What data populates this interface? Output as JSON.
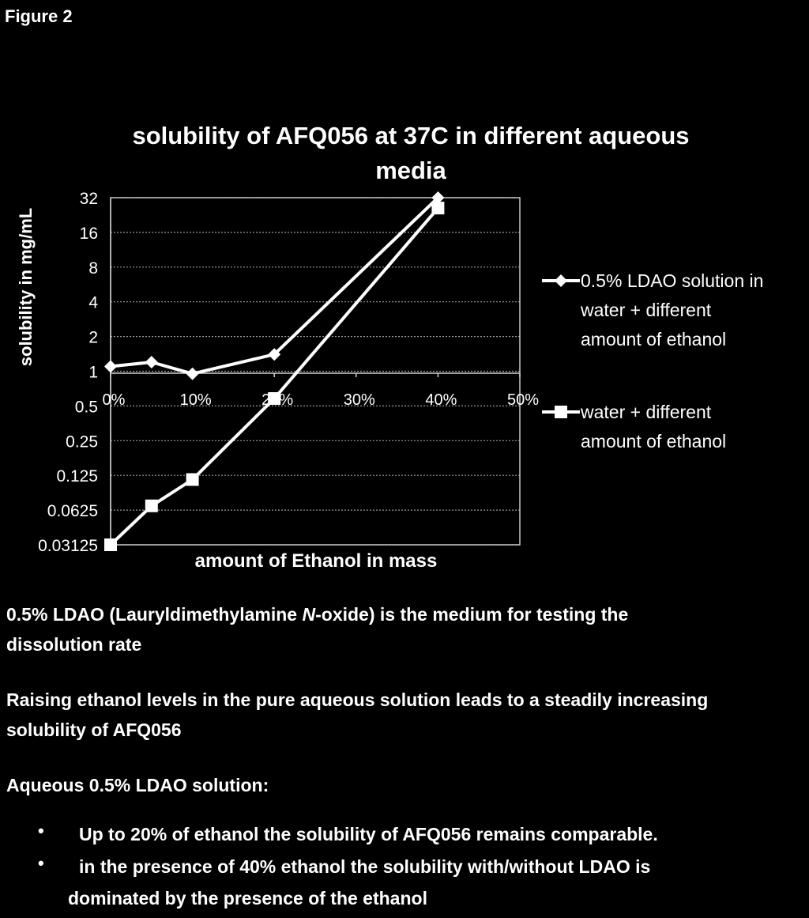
{
  "figure_label": "Figure 2",
  "chart_data": {
    "type": "line",
    "title": "solubility of AFQ056 at 37C in different aqueous media",
    "xlabel": "amount of Ethanol in mass",
    "ylabel": "solubility in mg/mL",
    "y_scale": "log2",
    "ylim": [
      0.03125,
      32
    ],
    "xlim": [
      0,
      50
    ],
    "y_ticks": [
      "32",
      "16",
      "8",
      "4",
      "2",
      "1",
      "0.5",
      "0.25",
      "0.125",
      "0.0625",
      "0.03125"
    ],
    "x_ticks": [
      "0%",
      "10%",
      "20%",
      "30%",
      "40%",
      "50%"
    ],
    "grid": true,
    "legend_position": "right",
    "series": [
      {
        "name": "0.5% LDAO solution in water  + different amount of ethanol",
        "marker": "diamond",
        "x": [
          0,
          5,
          10,
          20,
          40
        ],
        "y": [
          1.1,
          1.2,
          0.95,
          1.4,
          32
        ]
      },
      {
        "name": "water  + different amount of ethanol",
        "marker": "square",
        "x": [
          0,
          5,
          10,
          20,
          40
        ],
        "y": [
          0.03125,
          0.068,
          0.115,
          0.58,
          26
        ]
      }
    ]
  },
  "legend": {
    "series1_lines": [
      "0.5% LDAO solution in",
      "water  + different",
      "amount of ethanol"
    ],
    "series2_lines": [
      "water  + different",
      "amount of ethanol"
    ]
  },
  "notes": {
    "p1_a": "0.5% LDAO (Lauryldimethylamine ",
    "p1_italic": "N",
    "p1_b": "-oxide) is the medium for testing the",
    "p1_line2": "dissolution rate",
    "p2_line1": "Raising ethanol levels in the pure aqueous solution leads to a steadily increasing",
    "p2_line2": "solubility of AFQ056",
    "p3": "Aqueous 0.5% LDAO solution:",
    "bullet_glyph": "•",
    "bullet1": "Up to 20% of ethanol the solubility of AFQ056 remains comparable.",
    "bullet2_line1": "in the presence of 40% ethanol the solubility with/without LDAO is",
    "bullet2_line2": "dominated by the   presence of the ethanol"
  }
}
